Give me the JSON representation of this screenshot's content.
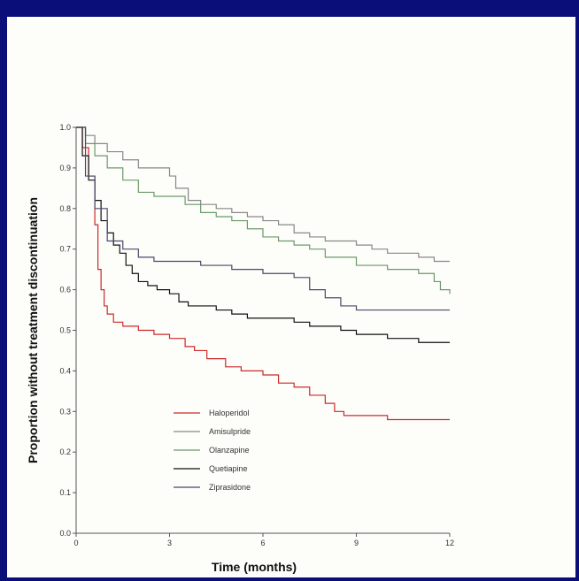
{
  "chart_data": {
    "type": "line",
    "step": true,
    "xlabel": "Time (months)",
    "ylabel": "Proportion without treatment discontinuation",
    "xlim": [
      0,
      12
    ],
    "ylim": [
      0,
      1.0
    ],
    "x_ticks": [
      0,
      3,
      6,
      9,
      12
    ],
    "y_ticks": [
      0.0,
      0.1,
      0.2,
      0.3,
      0.4,
      0.5,
      0.6,
      0.7,
      0.8,
      0.9,
      1.0
    ],
    "grid": false,
    "legend_position": "lower-center",
    "series": [
      {
        "name": "Haloperidol",
        "color": "#cc2a2a",
        "x": [
          0,
          0.2,
          0.4,
          0.6,
          0.7,
          0.8,
          0.9,
          1.0,
          1.2,
          1.5,
          2.0,
          2.5,
          3.0,
          3.5,
          3.8,
          4.2,
          4.8,
          5.3,
          6.0,
          6.5,
          7.0,
          7.5,
          8.0,
          8.3,
          8.6,
          9.0,
          10.0,
          10.5,
          12.0
        ],
        "y": [
          1.0,
          0.95,
          0.88,
          0.76,
          0.65,
          0.6,
          0.56,
          0.54,
          0.52,
          0.51,
          0.5,
          0.49,
          0.48,
          0.46,
          0.45,
          0.43,
          0.41,
          0.4,
          0.39,
          0.37,
          0.36,
          0.34,
          0.32,
          0.3,
          0.29,
          0.29,
          0.28,
          0.28,
          0.28
        ]
      },
      {
        "name": "Amisulpride",
        "color": "#888888",
        "x": [
          0,
          0.3,
          0.6,
          1.0,
          1.5,
          2.0,
          2.5,
          3.0,
          3.2,
          3.6,
          4.0,
          4.5,
          5.0,
          5.5,
          6.0,
          6.5,
          7.0,
          7.5,
          8.0,
          8.5,
          9.0,
          9.5,
          10.0,
          11.0,
          11.5,
          12.0
        ],
        "y": [
          1.0,
          0.98,
          0.96,
          0.94,
          0.92,
          0.9,
          0.9,
          0.88,
          0.85,
          0.82,
          0.81,
          0.8,
          0.79,
          0.78,
          0.77,
          0.76,
          0.74,
          0.73,
          0.72,
          0.72,
          0.71,
          0.7,
          0.69,
          0.68,
          0.67,
          0.67
        ]
      },
      {
        "name": "Olanzapine",
        "color": "#6a9a6a",
        "x": [
          0,
          0.3,
          0.6,
          1.0,
          1.5,
          2.0,
          2.5,
          3.0,
          3.5,
          4.0,
          4.5,
          5.0,
          5.5,
          6.0,
          6.5,
          7.0,
          7.5,
          8.0,
          9.0,
          10.0,
          11.0,
          11.5,
          11.7,
          12.0
        ],
        "y": [
          1.0,
          0.96,
          0.93,
          0.9,
          0.87,
          0.84,
          0.83,
          0.83,
          0.81,
          0.79,
          0.78,
          0.77,
          0.75,
          0.73,
          0.72,
          0.71,
          0.7,
          0.68,
          0.66,
          0.65,
          0.64,
          0.62,
          0.6,
          0.59
        ]
      },
      {
        "name": "Quetiapine",
        "color": "#111111",
        "x": [
          0,
          0.2,
          0.4,
          0.6,
          0.8,
          1.0,
          1.2,
          1.4,
          1.6,
          1.8,
          2.0,
          2.3,
          2.6,
          3.0,
          3.3,
          3.6,
          4.0,
          4.5,
          5.0,
          5.5,
          6.0,
          7.0,
          7.5,
          8.0,
          8.5,
          9.0,
          9.5,
          10.0,
          11.0,
          12.0
        ],
        "y": [
          1.0,
          0.93,
          0.87,
          0.82,
          0.77,
          0.74,
          0.71,
          0.69,
          0.66,
          0.64,
          0.62,
          0.61,
          0.6,
          0.59,
          0.57,
          0.56,
          0.56,
          0.55,
          0.54,
          0.53,
          0.53,
          0.52,
          0.51,
          0.51,
          0.5,
          0.49,
          0.49,
          0.48,
          0.47,
          0.47
        ]
      },
      {
        "name": "Ziprasidone",
        "color": "#4a4a6a",
        "x": [
          0,
          0.3,
          0.6,
          1.0,
          1.5,
          2.0,
          2.5,
          3.0,
          3.5,
          4.0,
          5.0,
          6.0,
          7.0,
          7.5,
          8.0,
          8.5,
          9.0,
          10.0,
          12.0
        ],
        "y": [
          1.0,
          0.88,
          0.8,
          0.72,
          0.7,
          0.68,
          0.67,
          0.67,
          0.67,
          0.66,
          0.65,
          0.64,
          0.63,
          0.6,
          0.58,
          0.56,
          0.55,
          0.55,
          0.55
        ]
      }
    ]
  }
}
